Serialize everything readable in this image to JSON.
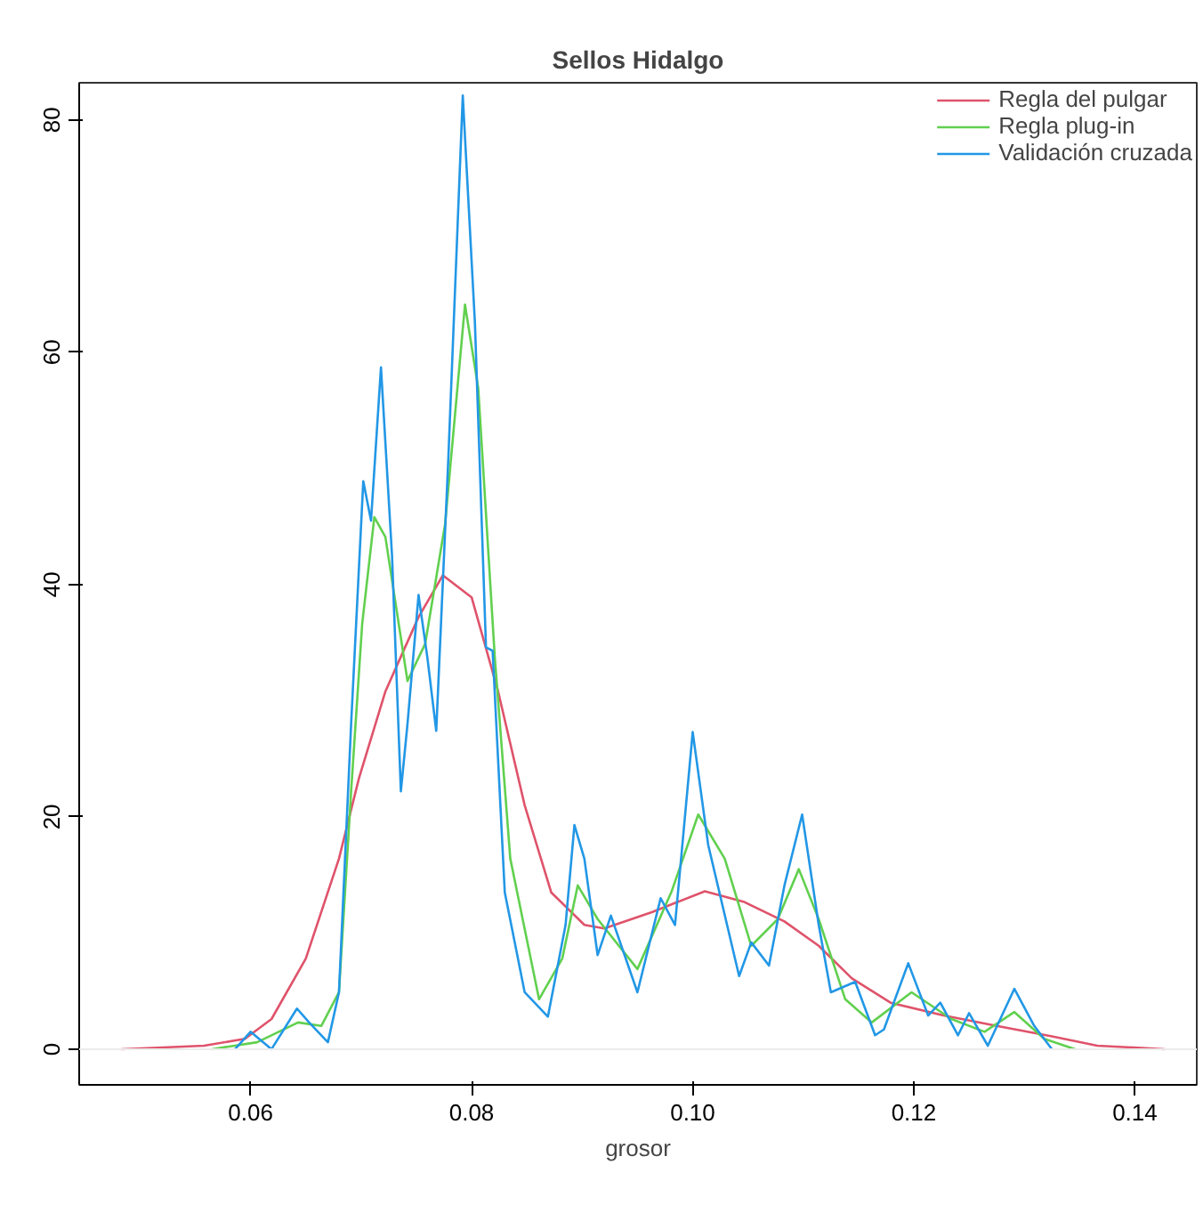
{
  "chart_data": {
    "type": "line",
    "title": "Sellos Hidalgo",
    "xlabel": "grosor",
    "xlim": [
      0.0445,
      0.1456
    ],
    "ylim": [
      -3.07,
      83.2
    ],
    "xticks": [
      0.06,
      0.08,
      {
        "value": 0.1,
        "label": "0.10"
      },
      0.12,
      0.14
    ],
    "yticks": [
      0,
      20,
      40,
      60,
      80
    ],
    "grid": false,
    "legend": "top right",
    "marker": "none",
    "line_style": "solid",
    "ref_lines": [
      {
        "axis": "y",
        "value": 0,
        "color": "#ebebeb"
      }
    ],
    "series": [
      {
        "name": "Regla del pulgar",
        "color": "#df536b",
        "x": [
          0.0483,
          0.0558,
          0.0595,
          0.0619,
          0.065,
          0.068,
          0.0698,
          0.0722,
          0.0752,
          0.0774,
          0.08,
          0.0824,
          0.0848,
          0.0872,
          0.0902,
          0.092,
          0.0963,
          0.1011,
          0.1046,
          0.1083,
          0.1114,
          0.1144,
          0.1179,
          0.1227,
          0.1275,
          0.1325,
          0.1366,
          0.1427
        ],
        "values": [
          0,
          0.3,
          0.9,
          2.6,
          7.8,
          16.4,
          23.3,
          30.8,
          37.2,
          40.8,
          38.9,
          30.8,
          21.0,
          13.5,
          10.7,
          10.4,
          11.8,
          13.6,
          12.7,
          11.0,
          8.9,
          6.1,
          4.0,
          2.9,
          2.0,
          1.1,
          0.3,
          0
        ]
      },
      {
        "name": "Regla plug-in",
        "color": "#61d04f",
        "x": [
          0.0565,
          0.0606,
          0.0643,
          0.0664,
          0.068,
          0.0691,
          0.0701,
          0.0712,
          0.0722,
          0.0742,
          0.0758,
          0.0776,
          0.0794,
          0.0806,
          0.0821,
          0.0835,
          0.0861,
          0.0882,
          0.0896,
          0.0914,
          0.095,
          0.0981,
          0.1005,
          0.1029,
          0.1053,
          0.1077,
          0.1096,
          0.1114,
          0.1138,
          0.1162,
          0.1198,
          0.1234,
          0.1264,
          0.1291,
          0.1318,
          0.1346
        ],
        "values": [
          0,
          0.6,
          2.3,
          2.0,
          4.9,
          22.2,
          36.6,
          45.8,
          44.1,
          31.7,
          34.9,
          45.2,
          64.1,
          56.9,
          33.7,
          16.4,
          4.3,
          7.8,
          14.1,
          11.2,
          6.9,
          13.6,
          20.2,
          16.4,
          8.9,
          11.2,
          15.5,
          11.2,
          4.3,
          2.3,
          4.9,
          2.6,
          1.5,
          3.2,
          0.9,
          0
        ]
      },
      {
        "name": "Validación cruzada",
        "color": "#2297e6",
        "x": [
          0.0586,
          0.06,
          0.0619,
          0.0642,
          0.0653,
          0.067,
          0.068,
          0.0691,
          0.0702,
          0.0709,
          0.0718,
          0.0728,
          0.0736,
          0.0742,
          0.0752,
          0.076,
          0.0768,
          0.0779,
          0.0792,
          0.0803,
          0.0813,
          0.0819,
          0.083,
          0.0848,
          0.0869,
          0.0885,
          0.0893,
          0.0902,
          0.0914,
          0.0926,
          0.095,
          0.0971,
          0.0984,
          0.1,
          0.1014,
          0.1042,
          0.1053,
          0.1069,
          0.1083,
          0.1099,
          0.1114,
          0.1125,
          0.1147,
          0.1165,
          0.1173,
          0.1195,
          0.1213,
          0.1224,
          0.124,
          0.125,
          0.1267,
          0.1291,
          0.1309,
          0.1325
        ],
        "values": [
          0,
          1.5,
          0,
          3.5,
          2.3,
          0.6,
          4.9,
          28.0,
          48.9,
          45.5,
          58.7,
          42.5,
          22.2,
          28.0,
          39.1,
          33.7,
          27.4,
          51.0,
          82.1,
          62.5,
          34.6,
          34.3,
          13.5,
          4.9,
          2.8,
          10.7,
          19.3,
          16.4,
          8.1,
          11.5,
          4.9,
          13.0,
          10.7,
          27.3,
          17.6,
          6.3,
          9.2,
          7.2,
          14.1,
          20.2,
          10.7,
          4.9,
          5.8,
          1.2,
          1.7,
          7.4,
          2.9,
          4.0,
          1.2,
          3.1,
          0.3,
          5.2,
          2.0,
          0
        ]
      }
    ]
  }
}
